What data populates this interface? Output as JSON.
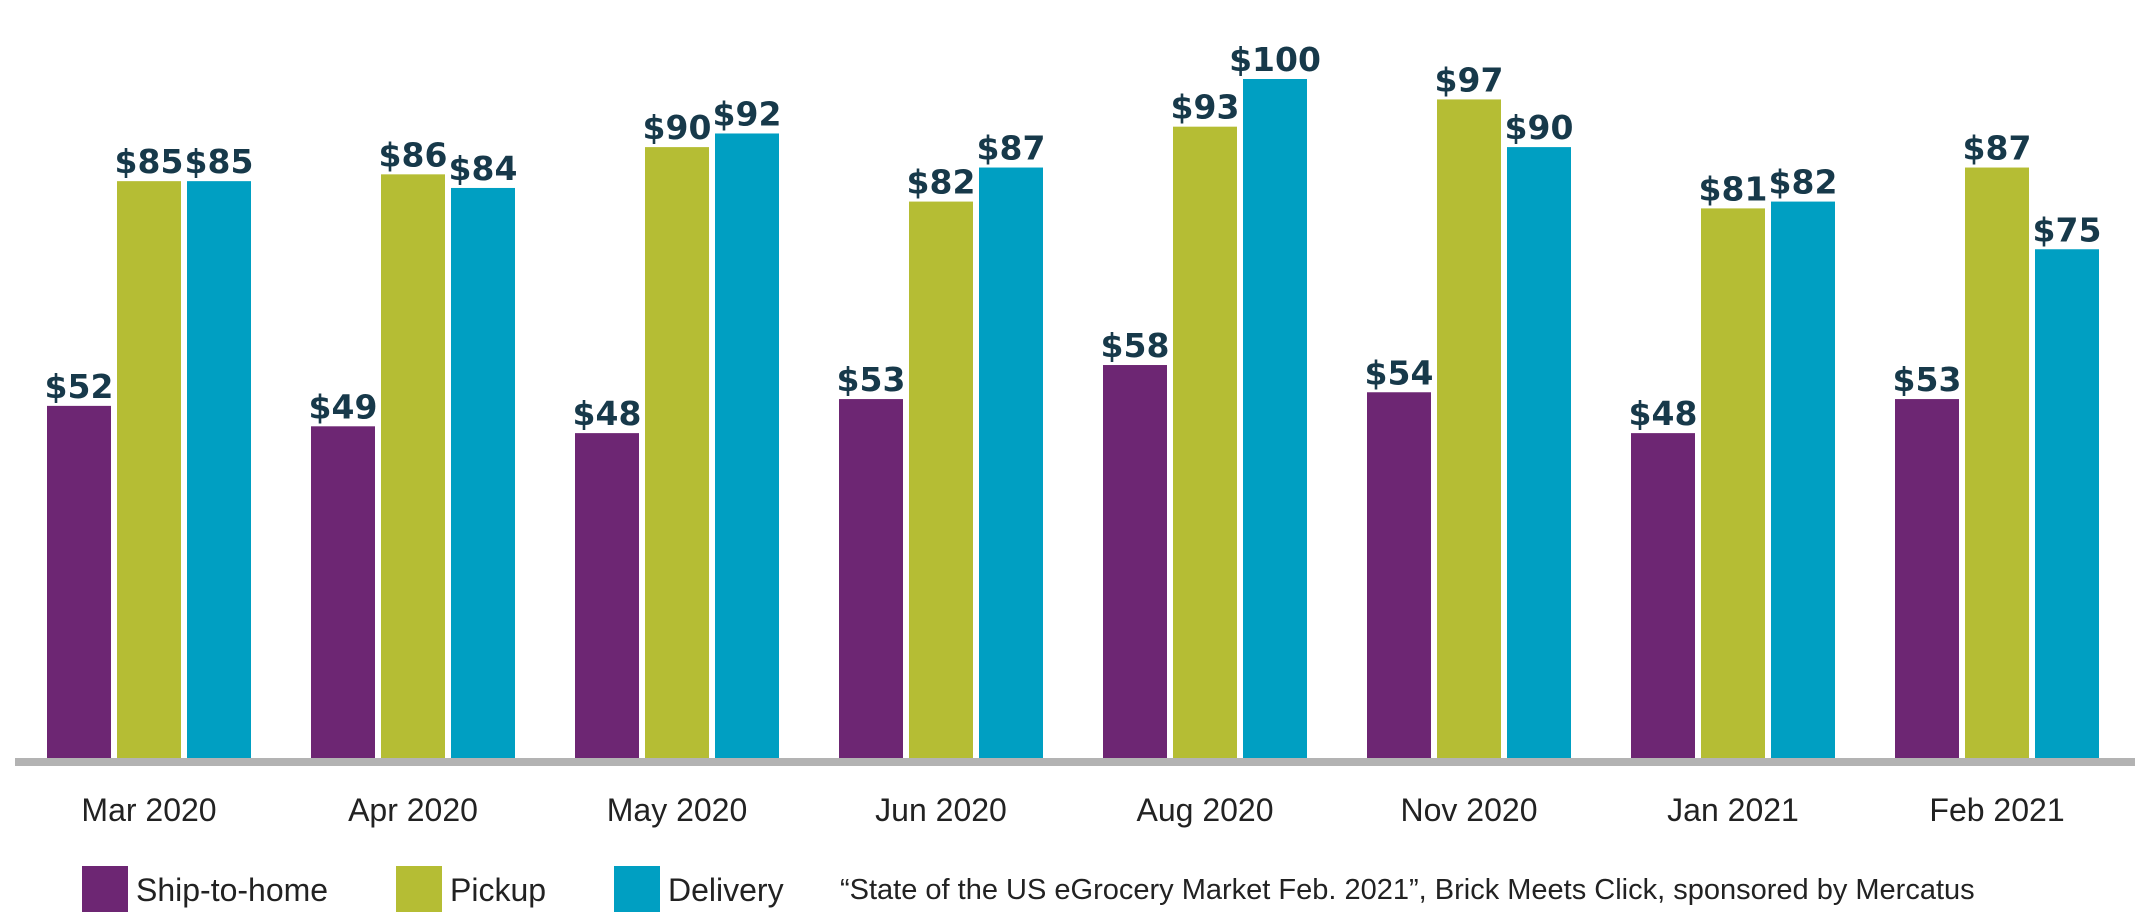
{
  "chart_data": {
    "type": "bar",
    "title": "",
    "xlabel": "",
    "ylabel": "",
    "ylim": [
      0,
      100
    ],
    "grid": false,
    "legend_position": "bottom-left",
    "categories": [
      "Mar 2020",
      "Apr 2020",
      "May 2020",
      "Jun 2020",
      "Aug 2020",
      "Nov 2020",
      "Jan 2021",
      "Feb 2021"
    ],
    "series": [
      {
        "name": "Ship-to-home",
        "color": "#6d2673",
        "values": [
          52,
          49,
          48,
          53,
          58,
          54,
          48,
          53
        ],
        "labels": [
          "$52",
          "$49",
          "$48",
          "$53",
          "$58",
          "$54",
          "$48",
          "$53"
        ]
      },
      {
        "name": "Pickup",
        "color": "#b5bd34",
        "values": [
          85,
          86,
          90,
          82,
          93,
          97,
          81,
          87
        ],
        "labels": [
          "$85",
          "$86",
          "$90",
          "$82",
          "$93",
          "$97",
          "$81",
          "$87"
        ]
      },
      {
        "name": "Delivery",
        "color": "#009fc2",
        "values": [
          85,
          84,
          92,
          87,
          100,
          90,
          82,
          75
        ],
        "labels": [
          "$85",
          "$84",
          "$92",
          "$87",
          "$100",
          "$90",
          "$82",
          "$75"
        ]
      }
    ],
    "source": "“State of the US eGrocery Market Feb. 2021”, Brick Meets Click, sponsored by Mercatus",
    "baseline_color": "#b3b3b3",
    "label_color": "#17394a"
  }
}
